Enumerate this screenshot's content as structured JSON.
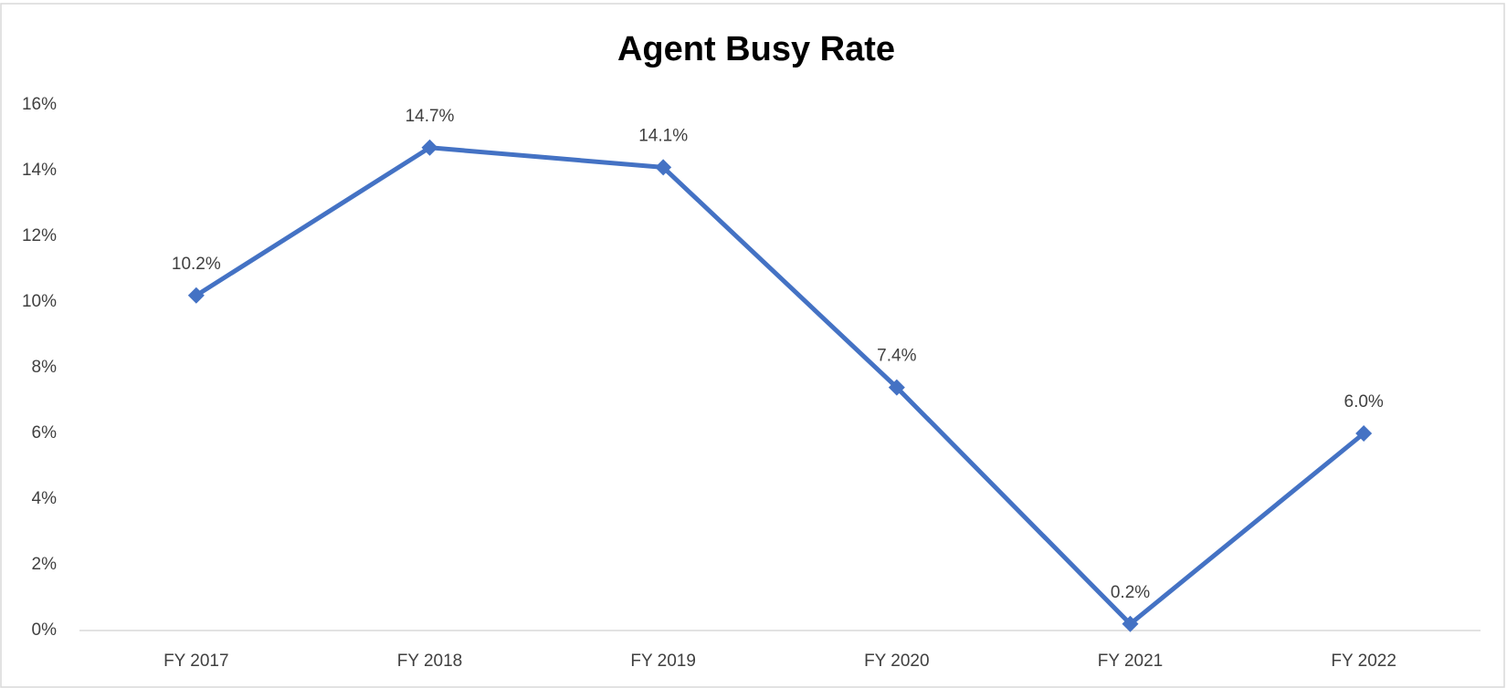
{
  "chart_data": {
    "type": "line",
    "title": "Agent Busy Rate",
    "categories": [
      "FY 2017",
      "FY 2018",
      "FY 2019",
      "FY 2020",
      "FY 2021",
      "FY 2022"
    ],
    "series": [
      {
        "name": "Agent Busy Rate",
        "color": "#4472c4",
        "values": [
          10.2,
          14.7,
          14.1,
          7.4,
          0.2,
          6.0
        ],
        "value_labels": [
          "10.2%",
          "14.7%",
          "14.1%",
          "7.4%",
          "0.2%",
          "6.0%"
        ]
      }
    ],
    "ylim": [
      0,
      16
    ],
    "yticks": [
      {
        "value": 0,
        "label": "0%"
      },
      {
        "value": 2,
        "label": "2%"
      },
      {
        "value": 4,
        "label": "4%"
      },
      {
        "value": 6,
        "label": "6%"
      },
      {
        "value": 8,
        "label": "8%"
      },
      {
        "value": 10,
        "label": "10%"
      },
      {
        "value": 12,
        "label": "12%"
      },
      {
        "value": 14,
        "label": "14%"
      },
      {
        "value": 16,
        "label": "16%"
      }
    ],
    "grid": false
  }
}
